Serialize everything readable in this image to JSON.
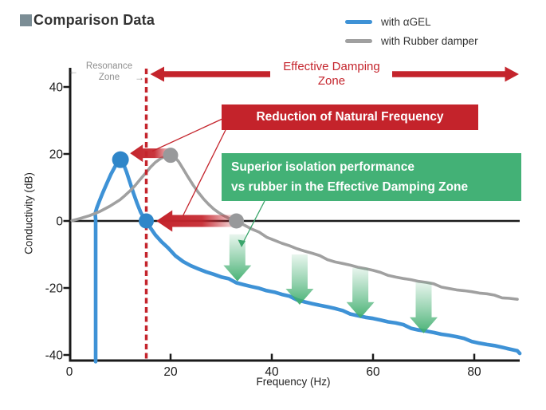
{
  "header": {
    "title": "Comparison Data"
  },
  "legend": {
    "items": [
      {
        "label": "with αGEL",
        "color": "#3e92d6"
      },
      {
        "label": "with Rubber damper",
        "color": "#a0a0a0"
      }
    ]
  },
  "chart_data": {
    "type": "line",
    "title": "Comparison Data",
    "xlabel": "Frequency (Hz)",
    "ylabel": "Conductivity (dB)",
    "xlim": [
      0,
      89
    ],
    "ylim": [
      -42,
      44
    ],
    "x_ticks": [
      0,
      20,
      40,
      60,
      80
    ],
    "y_ticks": [
      40,
      20,
      0,
      -20,
      -40
    ],
    "grid": false,
    "legend_position": "top-right",
    "series": [
      {
        "name": "with αGEL",
        "color": "#3e92d6",
        "width": 4.6,
        "points": [
          [
            5.2,
            -42
          ],
          [
            5.2,
            0.5
          ],
          [
            5.1,
            2.2
          ],
          [
            5.4,
            3.8
          ],
          [
            5.9,
            5.8
          ],
          [
            6.6,
            8.4
          ],
          [
            7.4,
            11.2
          ],
          [
            8.2,
            13.9
          ],
          [
            9.0,
            16.2
          ],
          [
            9.6,
            17.6
          ],
          [
            10.1,
            18.3
          ],
          [
            10.7,
            17.0
          ],
          [
            11.3,
            14.6
          ],
          [
            12.0,
            11.4
          ],
          [
            12.7,
            8.2
          ],
          [
            13.4,
            5.2
          ],
          [
            14.1,
            2.6
          ],
          [
            14.7,
            1.0
          ],
          [
            15.3,
            -0.2
          ],
          [
            16.0,
            -2.0
          ],
          [
            17.0,
            -4.2
          ],
          [
            18.2,
            -6.3
          ],
          [
            19.5,
            -8.2
          ],
          [
            21.0,
            -10.2
          ],
          [
            22.5,
            -11.9
          ],
          [
            24.0,
            -13.2
          ],
          [
            25.5,
            -14.3
          ],
          [
            27.0,
            -15.2
          ],
          [
            28.5,
            -16.0
          ],
          [
            30.0,
            -16.8
          ],
          [
            31.5,
            -17.5
          ],
          [
            33.0,
            -18.2
          ],
          [
            34.5,
            -18.8
          ],
          [
            36.0,
            -19.5
          ],
          [
            37.5,
            -20.1
          ],
          [
            39.0,
            -20.8
          ],
          [
            40.5,
            -21.4
          ],
          [
            42.0,
            -22.1
          ],
          [
            43.5,
            -22.7
          ],
          [
            45.0,
            -23.4
          ],
          [
            46.5,
            -24.0
          ],
          [
            48.0,
            -24.6
          ],
          [
            49.5,
            -25.1
          ],
          [
            51.0,
            -25.7
          ],
          [
            52.5,
            -26.3
          ],
          [
            54.0,
            -26.9
          ],
          [
            55.5,
            -27.5
          ],
          [
            57.0,
            -28.1
          ],
          [
            58.5,
            -28.6
          ],
          [
            60.0,
            -29.1
          ],
          [
            61.5,
            -29.6
          ],
          [
            63.0,
            -30.2
          ],
          [
            64.5,
            -30.7
          ],
          [
            66.0,
            -31.2
          ],
          [
            67.5,
            -31.8
          ],
          [
            69.0,
            -32.3
          ],
          [
            70.5,
            -32.8
          ],
          [
            72.0,
            -33.3
          ],
          [
            73.5,
            -33.8
          ],
          [
            75.0,
            -34.3
          ],
          [
            76.5,
            -34.8
          ],
          [
            78.0,
            -35.3
          ],
          [
            79.5,
            -35.8
          ],
          [
            81.0,
            -36.3
          ],
          [
            82.5,
            -36.8
          ],
          [
            84.0,
            -37.3
          ],
          [
            85.5,
            -37.8
          ],
          [
            87.0,
            -38.4
          ],
          [
            88.5,
            -39.0
          ],
          [
            89.0,
            -39.3
          ]
        ]
      },
      {
        "name": "with Rubber damper",
        "color": "#a0a0a0",
        "width": 3.6,
        "points": [
          [
            0.5,
            0.1
          ],
          [
            2.0,
            0.7
          ],
          [
            4.0,
            1.6
          ],
          [
            6.0,
            2.8
          ],
          [
            8.0,
            4.4
          ],
          [
            10.0,
            6.3
          ],
          [
            11.0,
            7.6
          ],
          [
            12.0,
            9.0
          ],
          [
            13.0,
            10.6
          ],
          [
            14.0,
            12.4
          ],
          [
            15.0,
            14.2
          ],
          [
            16.0,
            16.0
          ],
          [
            17.0,
            17.5
          ],
          [
            18.0,
            18.6
          ],
          [
            19.0,
            19.3
          ],
          [
            20.0,
            19.6
          ],
          [
            20.8,
            19.1
          ],
          [
            21.6,
            17.7
          ],
          [
            22.5,
            15.5
          ],
          [
            23.5,
            13.0
          ],
          [
            24.5,
            10.6
          ],
          [
            25.5,
            8.5
          ],
          [
            26.5,
            6.6
          ],
          [
            27.5,
            5.0
          ],
          [
            28.5,
            3.6
          ],
          [
            29.5,
            2.5
          ],
          [
            30.5,
            1.6
          ],
          [
            31.5,
            0.8
          ],
          [
            32.3,
            0.3
          ],
          [
            33.0,
            -0.1
          ],
          [
            34.5,
            -1.2
          ],
          [
            36.0,
            -2.4
          ],
          [
            37.5,
            -3.5
          ],
          [
            39.0,
            -4.6
          ],
          [
            40.5,
            -5.6
          ],
          [
            42.0,
            -6.5
          ],
          [
            43.5,
            -7.4
          ],
          [
            45.0,
            -8.3
          ],
          [
            46.5,
            -9.1
          ],
          [
            48.0,
            -9.9
          ],
          [
            49.5,
            -10.6
          ],
          [
            51.0,
            -11.3
          ],
          [
            52.5,
            -12.0
          ],
          [
            54.0,
            -12.6
          ],
          [
            55.5,
            -13.2
          ],
          [
            57.0,
            -13.8
          ],
          [
            58.5,
            -14.4
          ],
          [
            60.0,
            -15.0
          ],
          [
            61.5,
            -15.6
          ],
          [
            63.0,
            -16.1
          ],
          [
            64.5,
            -16.6
          ],
          [
            66.0,
            -17.1
          ],
          [
            67.5,
            -17.6
          ],
          [
            69.0,
            -18.1
          ],
          [
            70.5,
            -18.5
          ],
          [
            72.0,
            -19.0
          ],
          [
            73.5,
            -19.5
          ],
          [
            75.0,
            -20.0
          ],
          [
            76.5,
            -20.4
          ],
          [
            78.0,
            -20.8
          ],
          [
            79.5,
            -21.2
          ],
          [
            81.0,
            -21.6
          ],
          [
            82.5,
            -22.0
          ],
          [
            84.0,
            -22.4
          ],
          [
            85.5,
            -22.7
          ],
          [
            87.0,
            -23.0
          ],
          [
            88.5,
            -23.3
          ]
        ]
      }
    ],
    "markers": [
      {
        "series": "agel",
        "hz": 10.1,
        "db": 18.3,
        "r": 10.5,
        "color": "#2f86c9",
        "meaning": "αGEL resonance peak"
      },
      {
        "series": "agel",
        "hz": 15.2,
        "db": 0,
        "r": 9.5,
        "color": "#2f86c9",
        "meaning": "αGEL natural frequency (0 dB crossing)"
      },
      {
        "series": "rubber",
        "hz": 20.0,
        "db": 19.6,
        "r": 9.5,
        "color": "#98999b",
        "meaning": "Rubber resonance peak"
      },
      {
        "series": "rubber",
        "hz": 33.0,
        "db": 0,
        "r": 9.5,
        "color": "#98999b",
        "meaning": "Rubber natural frequency (0 dB crossing)"
      }
    ]
  },
  "annotations": {
    "resonance_zone": {
      "line1": "Resonance",
      "line2": "Zone",
      "left_arrow": "←",
      "right_arrow": "→",
      "boundary_hz": 15.2
    },
    "effective_damping_zone": {
      "line1": "Effective Damping",
      "line2": "Zone"
    },
    "reduction_badge": {
      "text": "Reduction of Natural Frequency"
    },
    "superior_badge": {
      "line1": "Superior isolation performance",
      "line2": "vs rubber in the Effective Damping Zone"
    },
    "red_arrows": [
      {
        "at_db": 20.2,
        "tip_hz": 12.0,
        "tail_hz": 20.8
      },
      {
        "at_db": 0,
        "tip_hz": 17.2,
        "tail_hz": 33.6
      }
    ],
    "green_arrows": [
      {
        "hz": 33.2,
        "top_db": -4.0,
        "bottom_db": -18.0
      },
      {
        "hz": 45.5,
        "top_db": -10.0,
        "bottom_db": -25.0
      },
      {
        "hz": 57.5,
        "top_db": -14.0,
        "bottom_db": -29.0
      },
      {
        "hz": 70.0,
        "top_db": -18.2,
        "bottom_db": -33.5
      }
    ]
  },
  "colors": {
    "red": "#c4242c",
    "green_badge": "#43b176",
    "green_arrow": "#3fae6e",
    "axis": "#1a1a1a",
    "title_square": "#7b8d95"
  }
}
